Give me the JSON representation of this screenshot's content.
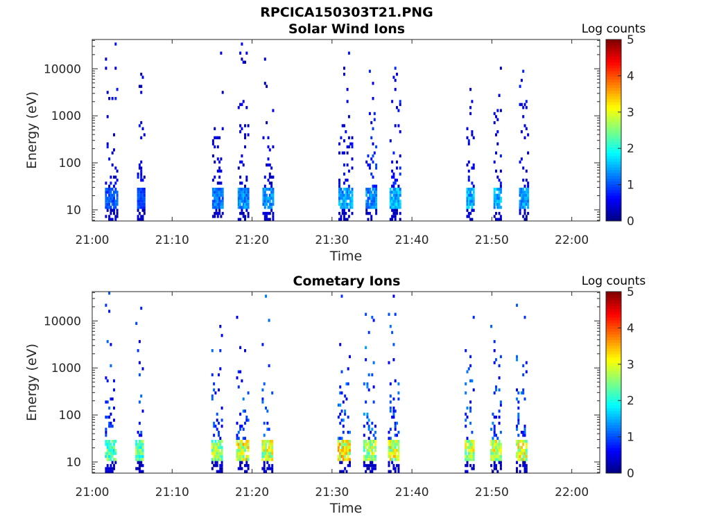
{
  "figure": {
    "title": "RPCICA150303T21.PNG"
  },
  "chart_data": [
    {
      "type": "heatmap",
      "title": "Solar Wind Ions",
      "xlabel": "Time",
      "ylabel": "Energy (eV)",
      "x_ticks": [
        "21:00",
        "21:10",
        "21:20",
        "21:30",
        "21:40",
        "21:50",
        "22:00"
      ],
      "x_range_minutes": [
        0,
        63.5
      ],
      "y_scale": "log",
      "y_ticks": [
        "10",
        "100",
        "1000",
        "10000"
      ],
      "y_range": [
        5.8,
        42000
      ],
      "colorbar": {
        "label": "Log counts",
        "ticks": [
          "0",
          "1",
          "2",
          "3",
          "4",
          "5"
        ],
        "range": [
          0,
          5
        ],
        "colormap": "jet"
      },
      "bursts": [
        {
          "start_min": 1.6,
          "end_min": 3.2,
          "low_level": 1.1,
          "sparse_level": 0.6
        },
        {
          "start_min": 5.6,
          "end_min": 6.6,
          "low_level": 1.0,
          "sparse_level": 0.6
        },
        {
          "start_min": 15.0,
          "end_min": 16.2,
          "low_level": 1.3,
          "sparse_level": 0.5
        },
        {
          "start_min": 18.2,
          "end_min": 19.4,
          "low_level": 1.4,
          "sparse_level": 0.5
        },
        {
          "start_min": 21.3,
          "end_min": 22.6,
          "low_level": 1.4,
          "sparse_level": 0.5
        },
        {
          "start_min": 30.8,
          "end_min": 32.4,
          "low_level": 1.5,
          "sparse_level": 0.6
        },
        {
          "start_min": 34.2,
          "end_min": 35.6,
          "low_level": 1.4,
          "sparse_level": 0.8
        },
        {
          "start_min": 37.2,
          "end_min": 38.6,
          "low_level": 1.6,
          "sparse_level": 0.7
        },
        {
          "start_min": 46.8,
          "end_min": 47.8,
          "low_level": 1.6,
          "sparse_level": 0.6
        },
        {
          "start_min": 50.2,
          "end_min": 51.2,
          "low_level": 1.6,
          "sparse_level": 0.6
        },
        {
          "start_min": 53.4,
          "end_min": 54.6,
          "low_level": 1.5,
          "sparse_level": 0.6
        }
      ]
    },
    {
      "type": "heatmap",
      "title": "Cometary Ions",
      "xlabel": "Time",
      "ylabel": "Energy (eV)",
      "x_ticks": [
        "21:00",
        "21:10",
        "21:20",
        "21:30",
        "21:40",
        "21:50",
        "22:00"
      ],
      "x_range_minutes": [
        0,
        63.5
      ],
      "y_scale": "log",
      "y_ticks": [
        "10",
        "100",
        "1000",
        "10000"
      ],
      "y_range": [
        5.8,
        42000
      ],
      "colorbar": {
        "label": "Log counts",
        "ticks": [
          "0",
          "1",
          "2",
          "3",
          "4",
          "5"
        ],
        "range": [
          0,
          5
        ],
        "colormap": "jet"
      },
      "bursts": [
        {
          "start_min": 1.6,
          "end_min": 3.0,
          "low_level": 2.4,
          "sparse_level": 0.9
        },
        {
          "start_min": 5.4,
          "end_min": 6.4,
          "low_level": 2.5,
          "sparse_level": 0.9
        },
        {
          "start_min": 14.9,
          "end_min": 16.2,
          "low_level": 2.8,
          "sparse_level": 0.9
        },
        {
          "start_min": 18.0,
          "end_min": 19.4,
          "low_level": 3.2,
          "sparse_level": 1.0
        },
        {
          "start_min": 21.2,
          "end_min": 22.5,
          "low_level": 3.0,
          "sparse_level": 1.0
        },
        {
          "start_min": 30.7,
          "end_min": 32.1,
          "low_level": 3.3,
          "sparse_level": 1.1
        },
        {
          "start_min": 33.9,
          "end_min": 35.5,
          "low_level": 3.0,
          "sparse_level": 1.1
        },
        {
          "start_min": 37.0,
          "end_min": 38.4,
          "low_level": 3.1,
          "sparse_level": 1.0
        },
        {
          "start_min": 46.6,
          "end_min": 47.8,
          "low_level": 3.0,
          "sparse_level": 1.0
        },
        {
          "start_min": 49.8,
          "end_min": 51.2,
          "low_level": 3.1,
          "sparse_level": 1.0
        },
        {
          "start_min": 53.0,
          "end_min": 54.4,
          "low_level": 3.1,
          "sparse_level": 1.0
        }
      ]
    }
  ]
}
